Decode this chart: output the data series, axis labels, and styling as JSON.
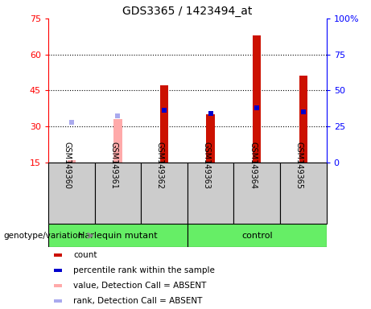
{
  "title": "GDS3365 / 1423494_at",
  "samples": [
    "GSM149360",
    "GSM149361",
    "GSM149362",
    "GSM149363",
    "GSM149364",
    "GSM149365"
  ],
  "groups": [
    "Harlequin mutant",
    "control"
  ],
  "absent_value": [
    16.0,
    33.0,
    null,
    null,
    null,
    null
  ],
  "absent_rank_pct": [
    28.0,
    32.0,
    null,
    null,
    null,
    null
  ],
  "count_value": [
    null,
    null,
    47.0,
    35.0,
    68.0,
    51.0
  ],
  "percentile_rank_pct": [
    null,
    null,
    36.0,
    34.0,
    38.0,
    35.0
  ],
  "ylim_left": [
    15,
    75
  ],
  "yticks_left": [
    15,
    30,
    45,
    60,
    75
  ],
  "ylim_right": [
    0,
    100
  ],
  "yticks_right": [
    0,
    25,
    50,
    75,
    100
  ],
  "yright_labels": [
    "0",
    "25",
    "50",
    "75",
    "100%"
  ],
  "hlines": [
    30,
    45,
    60
  ],
  "color_count": "#cc1100",
  "color_rank": "#0000cc",
  "color_absent_value": "#ffaaaa",
  "color_absent_rank": "#aaaaee",
  "color_plot_bg": "#ffffff",
  "color_label_bg": "#cccccc",
  "color_group_bg": "#66ee66",
  "bar_width": 0.18,
  "marker_size": 5,
  "legend_items": [
    [
      "#cc1100",
      "count"
    ],
    [
      "#0000cc",
      "percentile rank within the sample"
    ],
    [
      "#ffaaaa",
      "value, Detection Call = ABSENT"
    ],
    [
      "#aaaaee",
      "rank, Detection Call = ABSENT"
    ]
  ]
}
